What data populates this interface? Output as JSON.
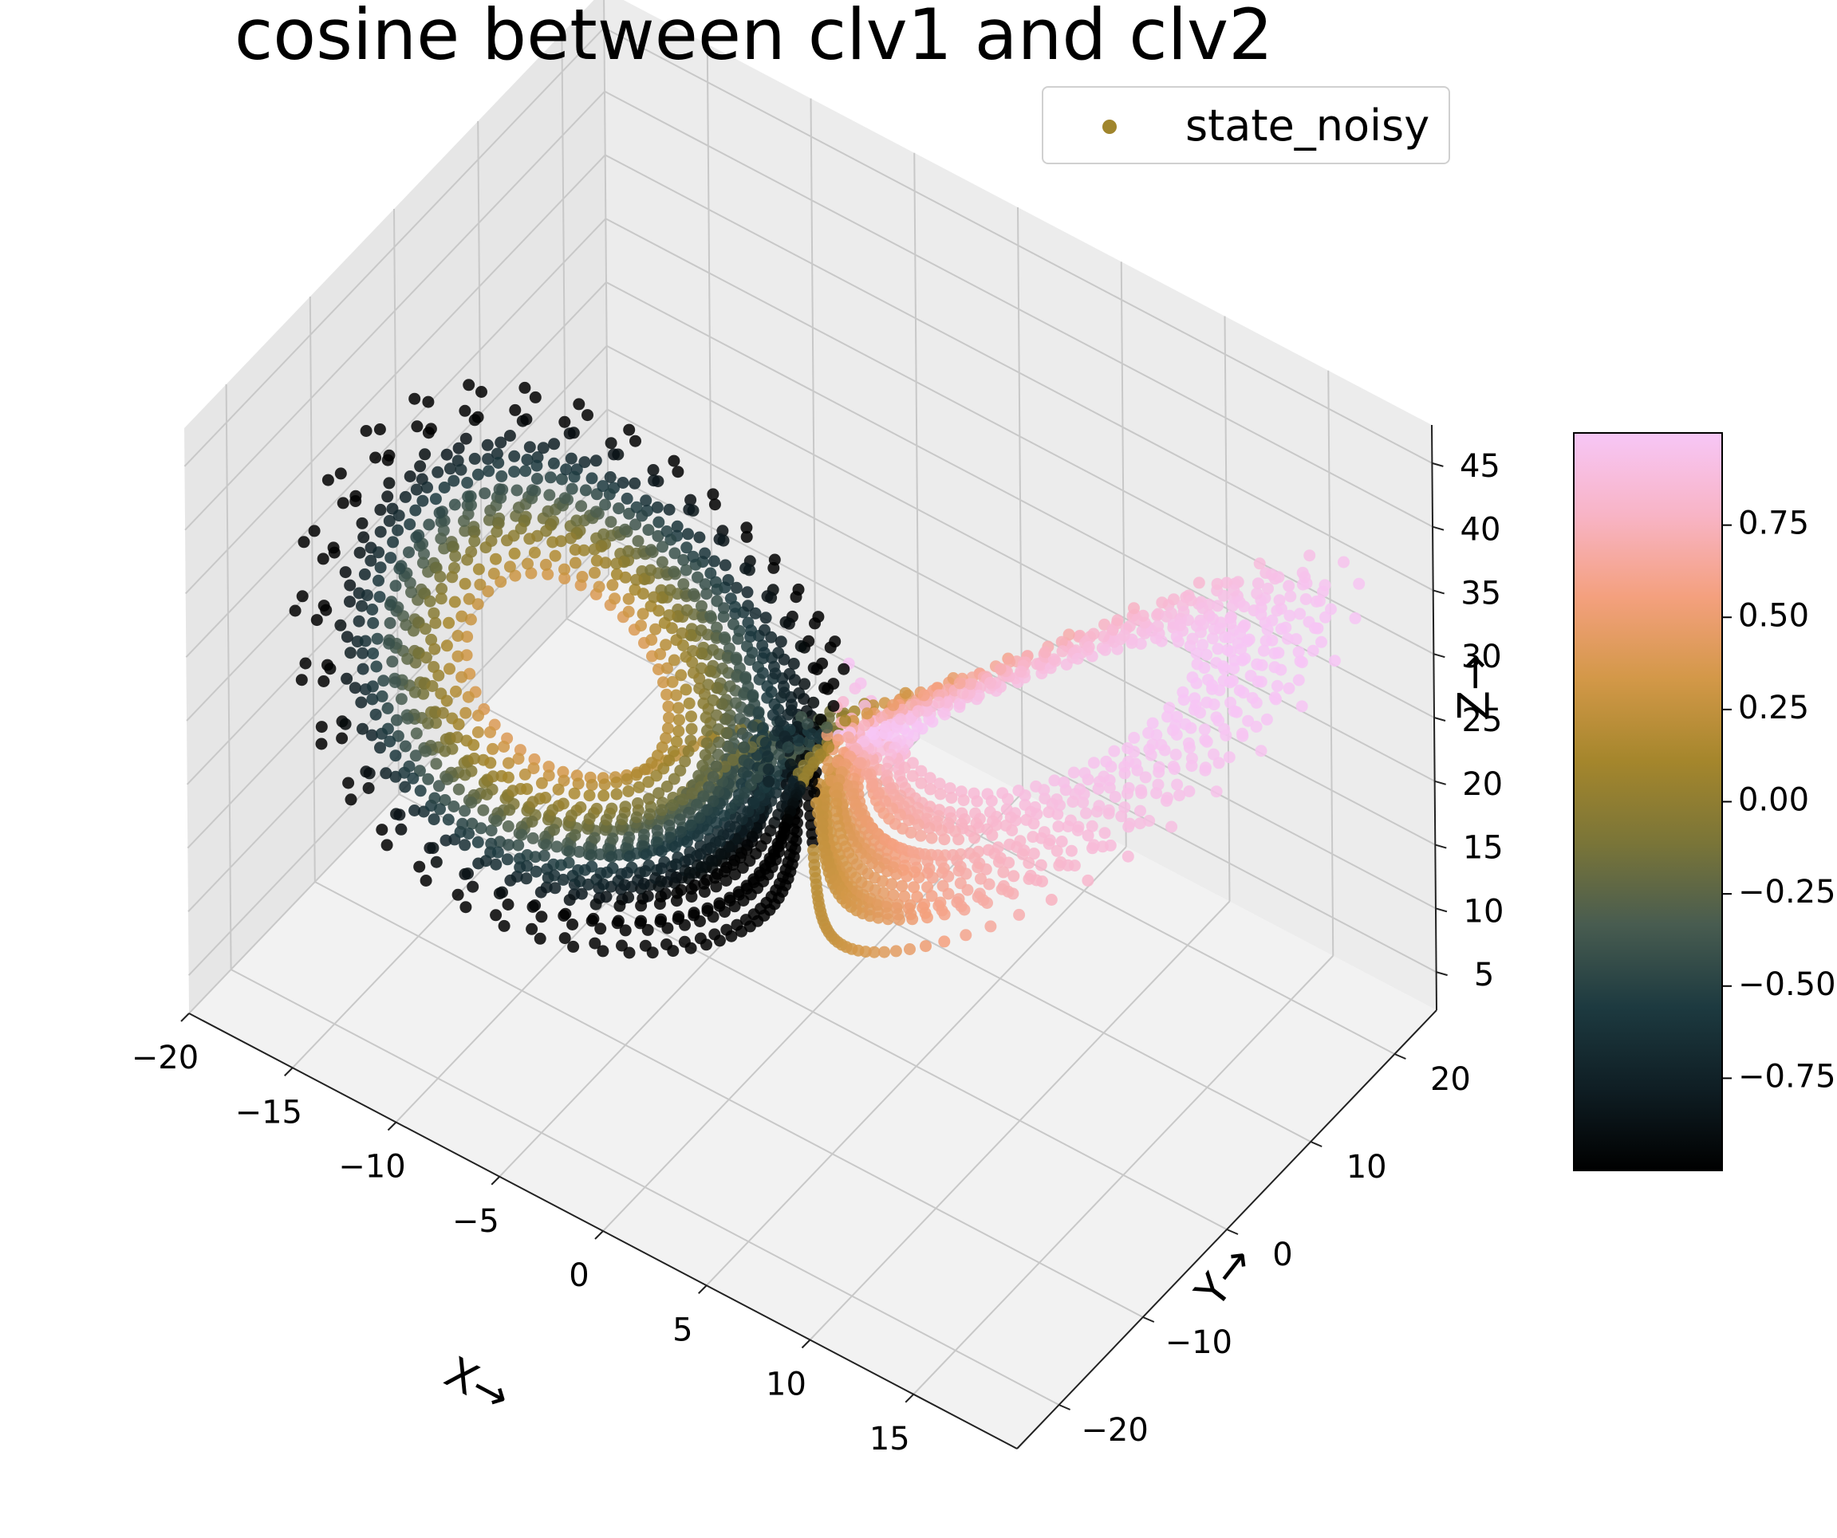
{
  "chart_data": {
    "type": "scatter",
    "projection": "3d",
    "title": "cosine between clv1 and clv2",
    "xlabel": "X→",
    "ylabel": "Y→",
    "zlabel": "Z→",
    "xlim": [
      -20,
      20
    ],
    "ylim": [
      -25,
      25
    ],
    "zlim": [
      2,
      48
    ],
    "xticks": [
      -20,
      -15,
      -10,
      -5,
      0,
      5,
      10,
      15
    ],
    "xtick_labels": [
      "−20",
      "−15",
      "−10",
      "−5",
      "0",
      "5",
      "10",
      "15"
    ],
    "yticks": [
      -20,
      -10,
      0,
      10,
      20
    ],
    "ytick_labels": [
      "−20",
      "−10",
      "0",
      "10",
      "20"
    ],
    "zticks": [
      5,
      10,
      15,
      20,
      25,
      30,
      35,
      40,
      45
    ],
    "ztick_labels": [
      "5",
      "10",
      "15",
      "20",
      "25",
      "30",
      "35",
      "40",
      "45"
    ],
    "grid": true,
    "legend": {
      "position": "top-right",
      "entries": [
        {
          "label": "state_noisy",
          "color": "#a0852c"
        }
      ]
    },
    "series": [
      {
        "name": "state_noisy",
        "marker": "circle",
        "color_by": "cosine between clv1 and clv2",
        "points_description": "Lorenz attractor trajectory with two lobes centered near (-8,-8,27) and (8,8,27)"
      }
    ],
    "colorbar": {
      "min": -1.0,
      "max": 1.0,
      "ticks": [
        -0.75,
        -0.5,
        -0.25,
        0.0,
        0.25,
        0.5,
        0.75
      ],
      "tick_labels": [
        "−0.75",
        "−0.50",
        "−0.25",
        "0.00",
        "0.25",
        "0.50",
        "0.75"
      ],
      "colormap": [
        "#000000",
        "#0f1e24",
        "#1d3a40",
        "#485c50",
        "#7a7538",
        "#a5862c",
        "#d39848",
        "#f4a07e",
        "#f8b4c6",
        "#f7c6f6"
      ]
    }
  }
}
